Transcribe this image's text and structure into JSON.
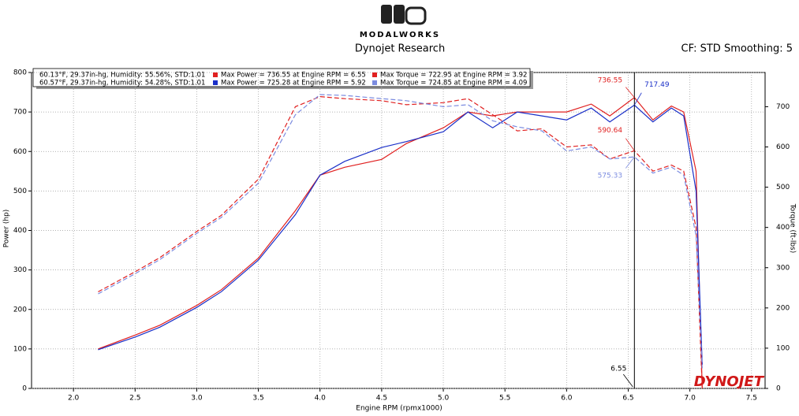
{
  "chart_data": {
    "type": "line",
    "brand": "MODALWORKS",
    "title": "Dynojet Research",
    "subtitle": "CF: STD Smoothing: 5",
    "x_label": "Engine RPM (rpmx1000)",
    "y_label": "Power (hp)",
    "y2_label": "Torque (ft-lbs)",
    "watermark": "DYNOJET",
    "cursor": 6.55,
    "runs": [
      "60.13°F, 29.37in-hg, Humidity: 55.56%, STD:1.01",
      "60.57°F, 29.37in-hg, Humidity: 54.28%, STD:1.01"
    ],
    "x": [
      2.2,
      2.5,
      2.7,
      3.0,
      3.2,
      3.5,
      3.8,
      4.0,
      4.2,
      4.5,
      4.7,
      5.0,
      5.2,
      5.4,
      5.6,
      5.8,
      6.0,
      6.2,
      6.35,
      6.55,
      6.7,
      6.85,
      6.95,
      7.05,
      7.1
    ],
    "series": [
      {
        "name": "Max Power = 736.55 at Engine RPM = 6.55",
        "color": "#e02020",
        "style": "solid",
        "axis": "y",
        "values": [
          100,
          135,
          160,
          210,
          250,
          330,
          450,
          540,
          560,
          580,
          620,
          660,
          700,
          690,
          700,
          700,
          700,
          720,
          690,
          736.55,
          680,
          715,
          700,
          550,
          0
        ]
      },
      {
        "name": "Max Power = 725.28 at Engine RPM = 5.92",
        "color": "#1a2fc8",
        "style": "solid",
        "axis": "y",
        "values": [
          98,
          130,
          155,
          205,
          245,
          325,
          440,
          540,
          575,
          610,
          625,
          650,
          700,
          660,
          700,
          690,
          680,
          710,
          675,
          717.49,
          675,
          710,
          690,
          500,
          60
        ]
      },
      {
        "name": "Max Torque = 722.95 at Engine RPM = 3.92",
        "color": "#e02020",
        "style": "dashed",
        "axis": "y2",
        "values": [
          240,
          290,
          325,
          390,
          430,
          520,
          700,
          725,
          720,
          715,
          705,
          710,
          720,
          680,
          640,
          645,
          600,
          605,
          570,
          590.64,
          540,
          555,
          540,
          400,
          0
        ]
      },
      {
        "name": "Max Torque = 724.85 at Engine RPM = 4.09",
        "color": "#7c8ce0",
        "style": "dashed",
        "axis": "y2",
        "values": [
          235,
          285,
          320,
          385,
          425,
          510,
          680,
          730,
          728,
          720,
          715,
          700,
          705,
          665,
          650,
          640,
          590,
          600,
          570,
          575.33,
          535,
          550,
          530,
          380,
          50
        ]
      }
    ],
    "xlim": [
      1.66,
      7.61
    ],
    "xticks": [
      {
        "value": 2,
        "label": "2.0"
      },
      2.5,
      {
        "value": 3,
        "label": "3.0"
      },
      3.5,
      {
        "value": 4,
        "label": "4.0"
      },
      4.5,
      {
        "value": 5,
        "label": "5.0"
      },
      5.5,
      {
        "value": 6,
        "label": "6.0"
      },
      6.5,
      {
        "value": 7,
        "label": "7.0"
      },
      7.5
    ],
    "ylim": [
      0,
      800
    ],
    "yticks": [
      0,
      100,
      200,
      300,
      400,
      500,
      600,
      700,
      800
    ],
    "y2lim": [
      0,
      785
    ],
    "y2ticks": [
      0,
      100,
      200,
      300,
      400,
      500,
      600,
      700
    ],
    "grid": true
  }
}
